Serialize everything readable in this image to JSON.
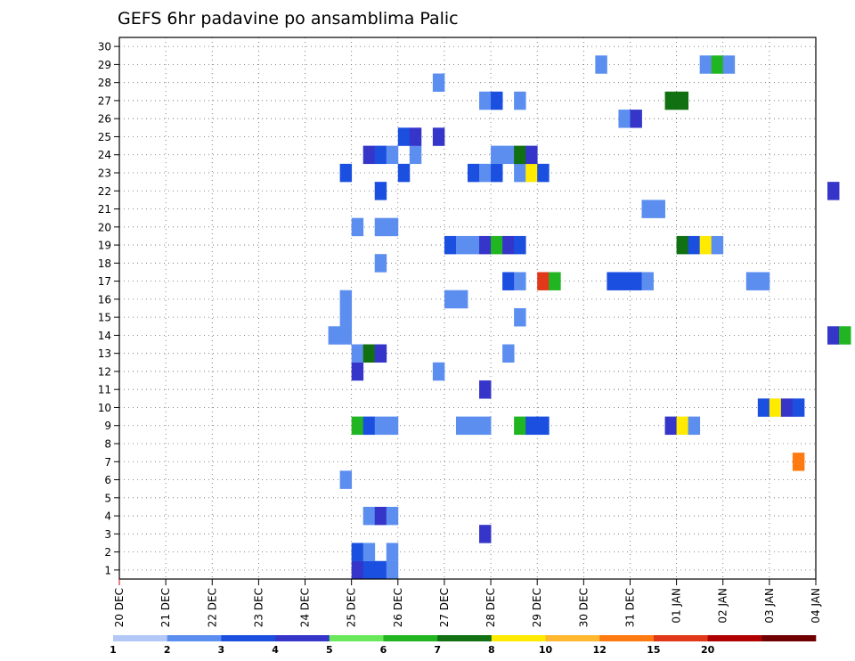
{
  "chart_data": {
    "type": "heatmap",
    "title": "GEFS 6hr padavine po ansamblima Palic",
    "x_ticks": [
      "20 DEC",
      "21 DEC",
      "22 DEC",
      "23 DEC",
      "24 DEC",
      "25 DEC",
      "26 DEC",
      "27 DEC",
      "28 DEC",
      "29 DEC",
      "30 DEC",
      "31 DEC",
      "01 JAN",
      "02 JAN",
      "03 JAN",
      "04 JAN"
    ],
    "xlim": [
      "2018-12-20 00Z",
      "2019-01-04 00Z"
    ],
    "y_ticks": [
      "1",
      "2",
      "3",
      "4",
      "5",
      "6",
      "7",
      "8",
      "9",
      "10",
      "11",
      "12",
      "13",
      "14",
      "15",
      "16",
      "17",
      "18",
      "19",
      "20",
      "21",
      "22",
      "23",
      "24",
      "25",
      "26",
      "27",
      "28",
      "29",
      "30"
    ],
    "ylim": [
      0.5,
      30.5
    ],
    "grid": "dotted",
    "step_hours": 6,
    "colorbar": {
      "labels": [
        "1",
        "2",
        "3",
        "4",
        "5",
        "6",
        "7",
        "8",
        "10",
        "12",
        "15",
        "20"
      ],
      "colors": [
        "#b3c8f7",
        "#5c8ef0",
        "#1a4fe0",
        "#3535c9",
        "#6ae85c",
        "#22b522",
        "#117011",
        "#ffea00",
        "#ffb830",
        "#ff7a10",
        "#e03818",
        "#b00000",
        "#700000"
      ]
    },
    "cells": [
      [
        "2018-12-25 00Z",
        1,
        3
      ],
      [
        "2018-12-25 06Z",
        1,
        2
      ],
      [
        "2018-12-25 12Z",
        1,
        2
      ],
      [
        "2018-12-25 18Z",
        1,
        1
      ],
      [
        "2018-12-25 00Z",
        2,
        2
      ],
      [
        "2018-12-25 06Z",
        2,
        1
      ],
      [
        "2018-12-25 18Z",
        2,
        1
      ],
      [
        "2018-12-27 18Z",
        3,
        3
      ],
      [
        "2018-12-25 06Z",
        4,
        1
      ],
      [
        "2018-12-25 12Z",
        4,
        3
      ],
      [
        "2018-12-25 18Z",
        4,
        1
      ],
      [
        "2018-12-24 18Z",
        6,
        1
      ],
      [
        "2019-01-03 12Z",
        7,
        9
      ],
      [
        "2018-12-25 00Z",
        9,
        5
      ],
      [
        "2018-12-25 06Z",
        9,
        2
      ],
      [
        "2018-12-25 12Z",
        9,
        1
      ],
      [
        "2018-12-25 18Z",
        9,
        1
      ],
      [
        "2018-12-27 06Z",
        9,
        1
      ],
      [
        "2018-12-27 12Z",
        9,
        1
      ],
      [
        "2018-12-27 18Z",
        9,
        1
      ],
      [
        "2018-12-28 12Z",
        9,
        5
      ],
      [
        "2018-12-28 18Z",
        9,
        2
      ],
      [
        "2018-12-29 00Z",
        9,
        2
      ],
      [
        "2018-12-31 18Z",
        9,
        3
      ],
      [
        "2019-01-01 00Z",
        9,
        7
      ],
      [
        "2019-01-01 06Z",
        9,
        1
      ],
      [
        "2019-01-02 18Z",
        10,
        2
      ],
      [
        "2019-01-03 00Z",
        10,
        7
      ],
      [
        "2019-01-03 06Z",
        10,
        3
      ],
      [
        "2019-01-03 12Z",
        10,
        2
      ],
      [
        "2018-12-27 18Z",
        11,
        3
      ],
      [
        "2018-12-25 00Z",
        12,
        3
      ],
      [
        "2018-12-26 18Z",
        12,
        1
      ],
      [
        "2018-12-25 00Z",
        13,
        1
      ],
      [
        "2018-12-25 06Z",
        13,
        6
      ],
      [
        "2018-12-25 12Z",
        13,
        3
      ],
      [
        "2018-12-28 06Z",
        13,
        1
      ],
      [
        "2018-12-24 12Z",
        14,
        1
      ],
      [
        "2018-12-24 18Z",
        14,
        1
      ],
      [
        "2019-01-04 06Z",
        14,
        3
      ],
      [
        "2019-01-04 12Z",
        14,
        5
      ],
      [
        "2018-12-24 18Z",
        15,
        1
      ],
      [
        "2018-12-28 12Z",
        15,
        1
      ],
      [
        "2018-12-24 18Z",
        16,
        1
      ],
      [
        "2018-12-27 00Z",
        16,
        1
      ],
      [
        "2018-12-27 06Z",
        16,
        1
      ],
      [
        "2018-12-28 06Z",
        17,
        2
      ],
      [
        "2018-12-28 12Z",
        17,
        1
      ],
      [
        "2018-12-29 00Z",
        17,
        10
      ],
      [
        "2018-12-29 06Z",
        17,
        5
      ],
      [
        "2018-12-30 12Z",
        17,
        2
      ],
      [
        "2018-12-30 18Z",
        17,
        2
      ],
      [
        "2018-12-31 00Z",
        17,
        2
      ],
      [
        "2018-12-31 06Z",
        17,
        1
      ],
      [
        "2019-01-02 12Z",
        17,
        1
      ],
      [
        "2019-01-02 18Z",
        17,
        1
      ],
      [
        "2018-12-25 12Z",
        18,
        1
      ],
      [
        "2018-12-27 00Z",
        19,
        2
      ],
      [
        "2018-12-27 06Z",
        19,
        1
      ],
      [
        "2018-12-27 12Z",
        19,
        1
      ],
      [
        "2018-12-27 18Z",
        19,
        3
      ],
      [
        "2018-12-28 00Z",
        19,
        5
      ],
      [
        "2018-12-28 06Z",
        19,
        3
      ],
      [
        "2018-12-28 12Z",
        19,
        2
      ],
      [
        "2019-01-01 00Z",
        19,
        6
      ],
      [
        "2019-01-01 06Z",
        19,
        2
      ],
      [
        "2019-01-01 12Z",
        19,
        7
      ],
      [
        "2019-01-01 18Z",
        19,
        1
      ],
      [
        "2018-12-25 00Z",
        20,
        1
      ],
      [
        "2018-12-25 12Z",
        20,
        1
      ],
      [
        "2018-12-25 18Z",
        20,
        1
      ],
      [
        "2018-12-31 06Z",
        21,
        1
      ],
      [
        "2018-12-31 12Z",
        21,
        1
      ],
      [
        "2018-12-25 12Z",
        22,
        2
      ],
      [
        "2019-01-04 06Z",
        22,
        3
      ],
      [
        "2018-12-24 18Z",
        23,
        2
      ],
      [
        "2018-12-26 00Z",
        23,
        2
      ],
      [
        "2018-12-27 12Z",
        23,
        2
      ],
      [
        "2018-12-27 18Z",
        23,
        1
      ],
      [
        "2018-12-28 00Z",
        23,
        2
      ],
      [
        "2018-12-28 12Z",
        23,
        1
      ],
      [
        "2018-12-28 18Z",
        23,
        7
      ],
      [
        "2018-12-29 00Z",
        23,
        2
      ],
      [
        "2018-12-25 06Z",
        24,
        3
      ],
      [
        "2018-12-25 12Z",
        24,
        2
      ],
      [
        "2018-12-25 18Z",
        24,
        1
      ],
      [
        "2018-12-26 06Z",
        24,
        1
      ],
      [
        "2018-12-28 00Z",
        24,
        1
      ],
      [
        "2018-12-28 06Z",
        24,
        1
      ],
      [
        "2018-12-28 12Z",
        24,
        6
      ],
      [
        "2018-12-28 18Z",
        24,
        3
      ],
      [
        "2018-12-26 00Z",
        25,
        2
      ],
      [
        "2018-12-26 06Z",
        25,
        3
      ],
      [
        "2018-12-26 18Z",
        25,
        3
      ],
      [
        "2018-12-30 18Z",
        26,
        1
      ],
      [
        "2018-12-31 00Z",
        26,
        3
      ],
      [
        "2018-12-27 18Z",
        27,
        1
      ],
      [
        "2018-12-28 00Z",
        27,
        2
      ],
      [
        "2018-12-28 12Z",
        27,
        1
      ],
      [
        "2018-12-31 18Z",
        27,
        6
      ],
      [
        "2019-01-01 00Z",
        27,
        6
      ],
      [
        "2018-12-26 18Z",
        28,
        1
      ],
      [
        "2018-12-30 06Z",
        29,
        1
      ],
      [
        "2019-01-01 12Z",
        29,
        1
      ],
      [
        "2019-01-01 18Z",
        29,
        5
      ],
      [
        "2019-01-02 00Z",
        29,
        1
      ]
    ]
  }
}
